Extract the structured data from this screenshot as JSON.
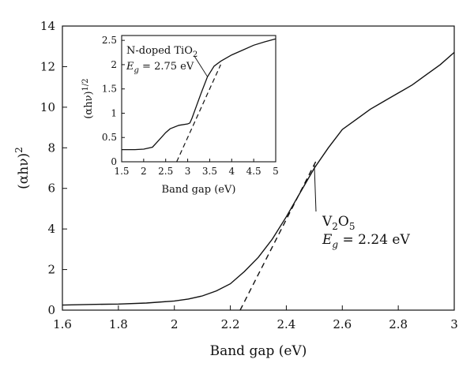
{
  "chart_data": [
    {
      "type": "line",
      "xlabel": "Band gap (eV)",
      "ylabel_parts": {
        "base": "(αhν)",
        "sup": "2"
      },
      "xlim": [
        1.6,
        3.0
      ],
      "ylim": [
        0,
        14
      ],
      "xticks": [
        "1.6",
        "1.8",
        "2",
        "2.2",
        "2.4",
        "2.6",
        "2.8",
        "3"
      ],
      "yticks": [
        "0",
        "2",
        "4",
        "6",
        "8",
        "10",
        "12",
        "14"
      ],
      "grid": false,
      "series": [
        {
          "points": [
            [
              1.6,
              0.25
            ],
            [
              1.7,
              0.28
            ],
            [
              1.8,
              0.3
            ],
            [
              1.9,
              0.35
            ],
            [
              2.0,
              0.45
            ],
            [
              2.05,
              0.55
            ],
            [
              2.1,
              0.7
            ],
            [
              2.15,
              0.95
            ],
            [
              2.2,
              1.3
            ],
            [
              2.25,
              1.9
            ],
            [
              2.3,
              2.6
            ],
            [
              2.35,
              3.5
            ],
            [
              2.4,
              4.6
            ],
            [
              2.45,
              5.8
            ],
            [
              2.5,
              7.0
            ],
            [
              2.55,
              8.0
            ],
            [
              2.6,
              8.9
            ],
            [
              2.65,
              9.4
            ],
            [
              2.7,
              9.9
            ],
            [
              2.75,
              10.3
            ],
            [
              2.8,
              10.7
            ],
            [
              2.85,
              11.1
            ],
            [
              2.9,
              11.6
            ],
            [
              2.95,
              12.1
            ],
            [
              3.0,
              12.7
            ]
          ]
        }
      ],
      "fit_line": {
        "points": [
          [
            2.235,
            0
          ],
          [
            2.51,
            7.45
          ]
        ]
      },
      "annotation": {
        "compound": {
          "parts": [
            [
              "V",
              "normal"
            ],
            [
              "2",
              "sub"
            ],
            [
              "O",
              "normal"
            ],
            [
              "5",
              "sub"
            ]
          ]
        },
        "eg_symbol": "E",
        "eg_sub": "g",
        "eg_value": " = 2.24 eV",
        "point": [
          2.5,
          7.2
        ]
      }
    },
    {
      "type": "line",
      "xlabel": "Band gap (eV)",
      "ylabel_parts": {
        "base": "(αhν)",
        "sup": "1/2"
      },
      "xlim": [
        1.5,
        5.0
      ],
      "ylim": [
        0,
        2.6
      ],
      "xticks": [
        "1.5",
        "2",
        "2.5",
        "3",
        "3.5",
        "4",
        "4.5",
        "5"
      ],
      "yticks": [
        "0",
        "0.5",
        "1",
        "1.5",
        "2",
        "2.5"
      ],
      "grid": false,
      "series": [
        {
          "points": [
            [
              1.5,
              0.25
            ],
            [
              1.8,
              0.25
            ],
            [
              2.0,
              0.26
            ],
            [
              2.2,
              0.3
            ],
            [
              2.35,
              0.45
            ],
            [
              2.5,
              0.6
            ],
            [
              2.6,
              0.68
            ],
            [
              2.8,
              0.75
            ],
            [
              3.0,
              0.78
            ],
            [
              3.05,
              0.8
            ],
            [
              3.1,
              0.9
            ],
            [
              3.2,
              1.15
            ],
            [
              3.3,
              1.4
            ],
            [
              3.45,
              1.75
            ],
            [
              3.6,
              1.97
            ],
            [
              3.75,
              2.07
            ],
            [
              4.0,
              2.2
            ],
            [
              4.25,
              2.3
            ],
            [
              4.5,
              2.4
            ],
            [
              4.75,
              2.47
            ],
            [
              5.0,
              2.53
            ]
          ]
        }
      ],
      "fit_line": {
        "points": [
          [
            2.75,
            0
          ],
          [
            3.75,
            2.0
          ]
        ]
      },
      "annotation": {
        "compound": {
          "parts": [
            [
              "N-doped TiO",
              "normal"
            ],
            [
              "2",
              "sub"
            ]
          ]
        },
        "eg_symbol": "E",
        "eg_sub": "g",
        "eg_value": " = 2.75 eV",
        "point": [
          3.45,
          1.75
        ]
      }
    }
  ]
}
